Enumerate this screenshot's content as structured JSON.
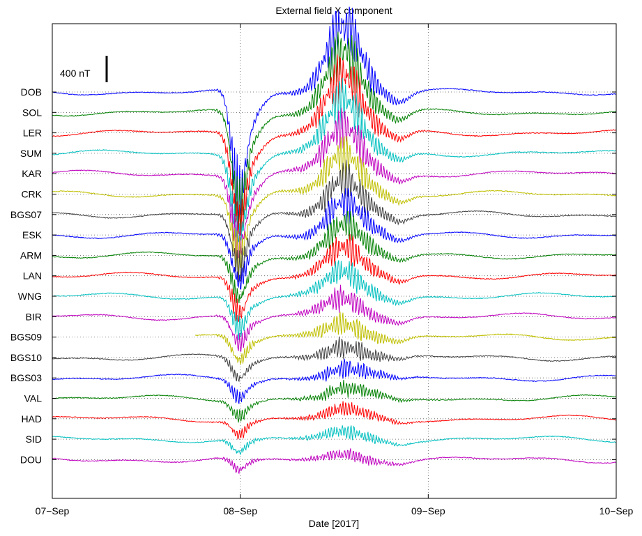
{
  "chart_data": {
    "type": "line",
    "title": "External field X component",
    "xlabel": "Date [2017]",
    "ylabel": "",
    "x_ticks": [
      "07−Sep",
      "08−Sep",
      "09−Sep",
      "10−Sep"
    ],
    "xlim_days": [
      0,
      3
    ],
    "grid": true,
    "scale_bar": {
      "label": "400 nT",
      "value_nT": 400
    },
    "stations": [
      {
        "name": "DOB",
        "color": "#0000ff"
      },
      {
        "name": "SOL",
        "color": "#008000"
      },
      {
        "name": "LER",
        "color": "#ff0000"
      },
      {
        "name": "SUM",
        "color": "#00bfbf"
      },
      {
        "name": "KAR",
        "color": "#bf00bf"
      },
      {
        "name": "CRK",
        "color": "#bfbf00"
      },
      {
        "name": "BGS07",
        "color": "#404040"
      },
      {
        "name": "ESK",
        "color": "#0000ff"
      },
      {
        "name": "ARM",
        "color": "#008000"
      },
      {
        "name": "LAN",
        "color": "#ff0000"
      },
      {
        "name": "WNG",
        "color": "#00bfbf"
      },
      {
        "name": "BIR",
        "color": "#bf00bf"
      },
      {
        "name": "BGS09",
        "color": "#bfbf00"
      },
      {
        "name": "BGS10",
        "color": "#404040"
      },
      {
        "name": "BGS03",
        "color": "#0000ff"
      },
      {
        "name": "VAL",
        "color": "#008000"
      },
      {
        "name": "HAD",
        "color": "#ff0000"
      },
      {
        "name": "SID",
        "color": "#00bfbf"
      },
      {
        "name": "DOU",
        "color": "#bf00bf"
      }
    ]
  }
}
